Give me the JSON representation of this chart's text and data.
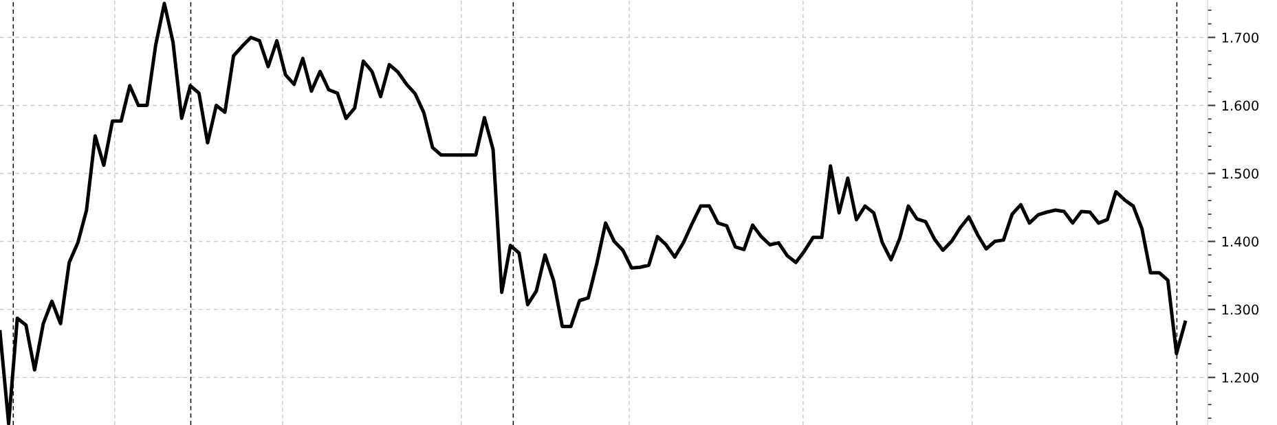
{
  "chart_data": {
    "type": "line",
    "categories": [
      null,
      null,
      null,
      null,
      null,
      null,
      null,
      null,
      null,
      null,
      null,
      null,
      null,
      null,
      null,
      null,
      null,
      null,
      null,
      null,
      null,
      null,
      null,
      null,
      null,
      null,
      null,
      null,
      null,
      null,
      null,
      null,
      null,
      null,
      null,
      null,
      null,
      null,
      null,
      null,
      null,
      null,
      null,
      null,
      null,
      null,
      null,
      null,
      null,
      null,
      null,
      null,
      null,
      null,
      null,
      null,
      null,
      null,
      null,
      null,
      null,
      null,
      null,
      null,
      null,
      null,
      null,
      null,
      null,
      null,
      null,
      null,
      null,
      null,
      null,
      null,
      null,
      null,
      null,
      null,
      null,
      null,
      null,
      null,
      null,
      null,
      null,
      null,
      null,
      null,
      null,
      null,
      null,
      null,
      null,
      null,
      null,
      null,
      null,
      null,
      null,
      null,
      null,
      null,
      null,
      null,
      null,
      null,
      null,
      null,
      null,
      null,
      null,
      null,
      null,
      null,
      null,
      null,
      null,
      null,
      null,
      null,
      null,
      null,
      null,
      null,
      null,
      null,
      null,
      null,
      null,
      null,
      null,
      null,
      null,
      null,
      null,
      null
    ],
    "series": [
      {
        "color": "#000000",
        "values": [
          1.267,
          1.132,
          1.287,
          1.277,
          1.211,
          1.279,
          1.312,
          1.279,
          1.369,
          1.398,
          1.446,
          1.555,
          1.512,
          1.577,
          1.577,
          1.629,
          1.6,
          1.6,
          1.689,
          1.75,
          1.693,
          1.581,
          1.629,
          1.618,
          1.545,
          1.6,
          1.59,
          1.673,
          1.687,
          1.7,
          1.695,
          1.657,
          1.695,
          1.645,
          1.631,
          1.669,
          1.621,
          1.65,
          1.623,
          1.618,
          1.581,
          1.596,
          1.665,
          1.65,
          1.613,
          1.66,
          1.649,
          1.631,
          1.617,
          1.589,
          1.538,
          1.527,
          1.527,
          1.527,
          1.527,
          1.527,
          1.582,
          1.535,
          1.325,
          1.394,
          1.383,
          1.307,
          1.327,
          1.38,
          1.342,
          1.275,
          1.275,
          1.313,
          1.317,
          1.368,
          1.427,
          1.4,
          1.387,
          1.361,
          1.362,
          1.365,
          1.407,
          1.395,
          1.377,
          1.398,
          1.426,
          1.452,
          1.452,
          1.427,
          1.423,
          1.392,
          1.388,
          1.424,
          1.407,
          1.395,
          1.398,
          1.379,
          1.369,
          1.386,
          1.406,
          1.406,
          1.511,
          1.442,
          1.493,
          1.432,
          1.452,
          1.442,
          1.398,
          1.373,
          1.404,
          1.452,
          1.433,
          1.429,
          1.404,
          1.387,
          1.4,
          1.42,
          1.436,
          1.41,
          1.389,
          1.4,
          1.402,
          1.44,
          1.454,
          1.427,
          1.439,
          1.443,
          1.446,
          1.444,
          1.427,
          1.444,
          1.443,
          1.427,
          1.432,
          1.473,
          1.461,
          1.452,
          1.419,
          1.354,
          1.354,
          1.343,
          1.235,
          1.281
        ]
      }
    ],
    "ylim": [
      1.13,
      1.755
    ],
    "yticks": [
      {
        "value": 1.2,
        "label": "1.200"
      },
      {
        "value": 1.3,
        "label": "1.300"
      },
      {
        "value": 1.4,
        "label": "1.400"
      },
      {
        "value": 1.5,
        "label": "1.500"
      },
      {
        "value": 1.6,
        "label": "1.600"
      },
      {
        "value": 1.7,
        "label": "1.700"
      }
    ],
    "tick_labels": "y",
    "grid": "y",
    "line_style": "solid"
  }
}
